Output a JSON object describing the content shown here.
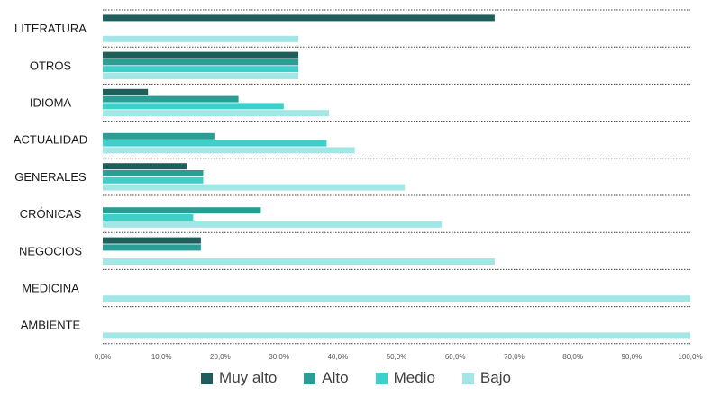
{
  "chart_data": {
    "type": "bar",
    "orientation": "horizontal",
    "categories": [
      "LITERATURA",
      "OTROS",
      "IDIOMA",
      "ACTUALIDAD",
      "GENERALES",
      "CRÓNICAS",
      "NEGOCIOS",
      "MEDICINA",
      "AMBIENTE"
    ],
    "series": [
      {
        "name": "Muy alto",
        "color": "#1f5f5b",
        "values": [
          66.7,
          33.3,
          7.7,
          0,
          14.3,
          0,
          16.7,
          0,
          0
        ]
      },
      {
        "name": "Alto",
        "color": "#2a9d95",
        "values": [
          0,
          33.3,
          23.1,
          19.0,
          17.1,
          26.9,
          16.7,
          0,
          0
        ]
      },
      {
        "name": "Medio",
        "color": "#3fcfcb",
        "values": [
          0,
          33.3,
          30.8,
          38.1,
          17.1,
          15.4,
          0,
          0,
          0
        ]
      },
      {
        "name": "Bajo",
        "color": "#a2e6e6",
        "values": [
          33.3,
          33.3,
          38.5,
          42.9,
          51.4,
          57.7,
          66.7,
          100,
          100
        ]
      }
    ],
    "xlim": [
      0,
      100
    ],
    "x_ticks": [
      "0,0%",
      "10,0%",
      "20,0%",
      "30,0%",
      "40,0%",
      "50,0%",
      "60,0%",
      "70,0%",
      "80,0%",
      "90,0%",
      "100,0%"
    ],
    "grid": "dotted horizontal separators",
    "legend_position": "bottom"
  }
}
